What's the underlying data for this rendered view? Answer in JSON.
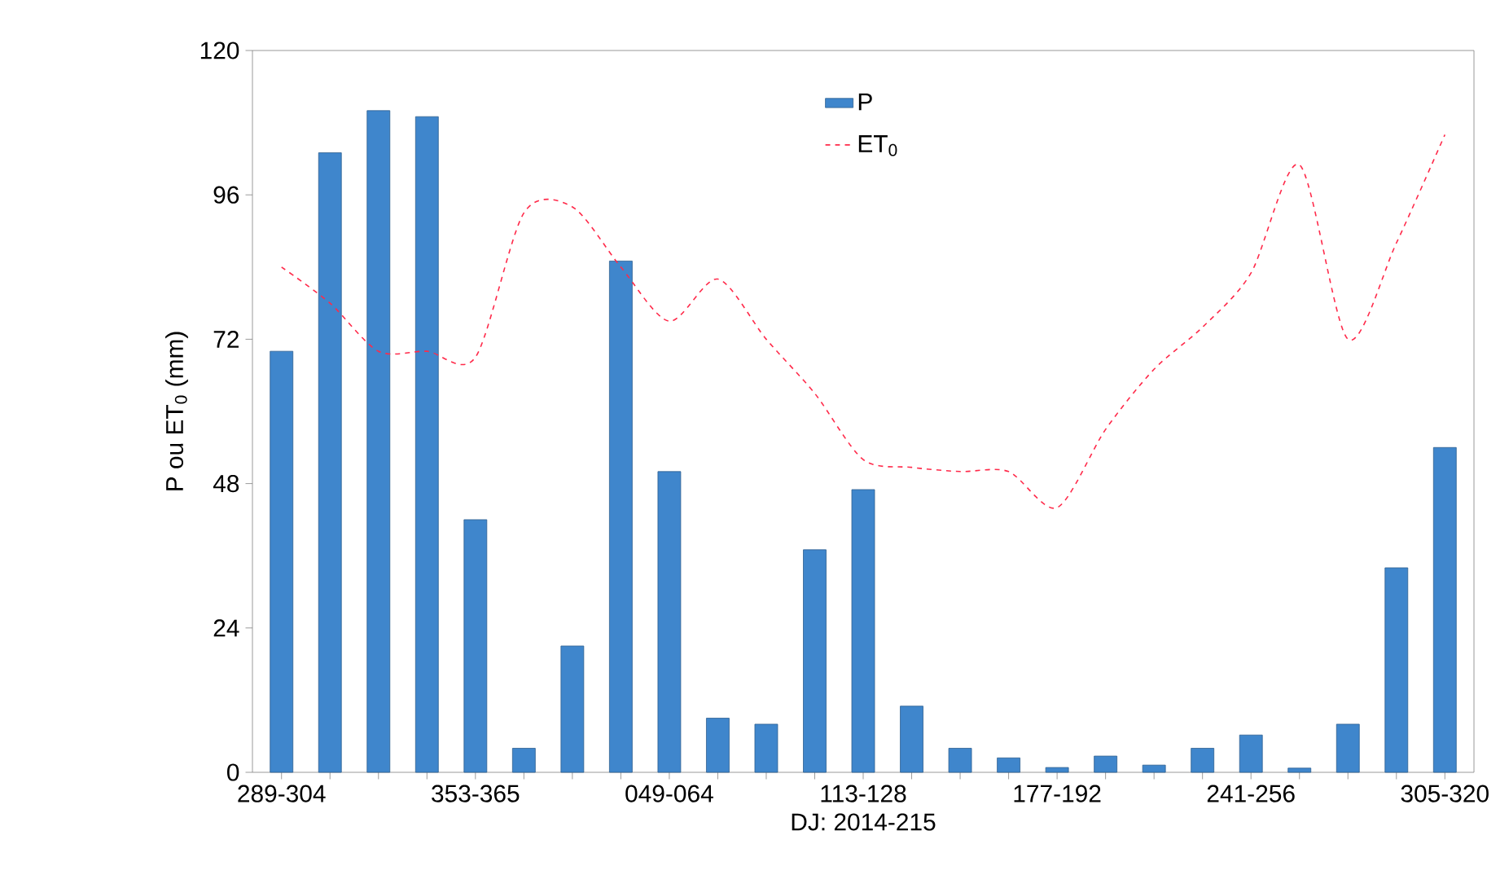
{
  "chart_data": {
    "type": "bar",
    "categories": [
      "289-304",
      null,
      null,
      null,
      "353-365",
      null,
      null,
      null,
      "049-064",
      null,
      null,
      null,
      "113-128",
      null,
      null,
      null,
      "177-192",
      null,
      null,
      null,
      "241-256",
      null,
      null,
      null,
      "305-320"
    ],
    "series": [
      {
        "name": "P",
        "color": "#3f86cc",
        "values": [
          70,
          103,
          110,
          109,
          42,
          4,
          21,
          85,
          50,
          9,
          8,
          37,
          47,
          11,
          4,
          2.4,
          0.8,
          2.7,
          1.2,
          4,
          6.2,
          0.7,
          8,
          34,
          54
        ]
      },
      {
        "name": "ET$_{0}$",
        "type": "line",
        "color": "#ff2a4a",
        "line_style": "dashed",
        "values": [
          84,
          78,
          70,
          70,
          69,
          93,
          94,
          84,
          75,
          82,
          72,
          63,
          52,
          50.7,
          50,
          50,
          44,
          57,
          67,
          74,
          83,
          101,
          72,
          88,
          106
        ]
      }
    ],
    "ylim": [
      0,
      120
    ],
    "yticks": [
      0,
      24,
      48,
      72,
      96,
      120
    ],
    "xlabel": "DJ: 2014-215",
    "ylabel": "P ou ET$_{0}$ (mm)",
    "legend": "top"
  }
}
